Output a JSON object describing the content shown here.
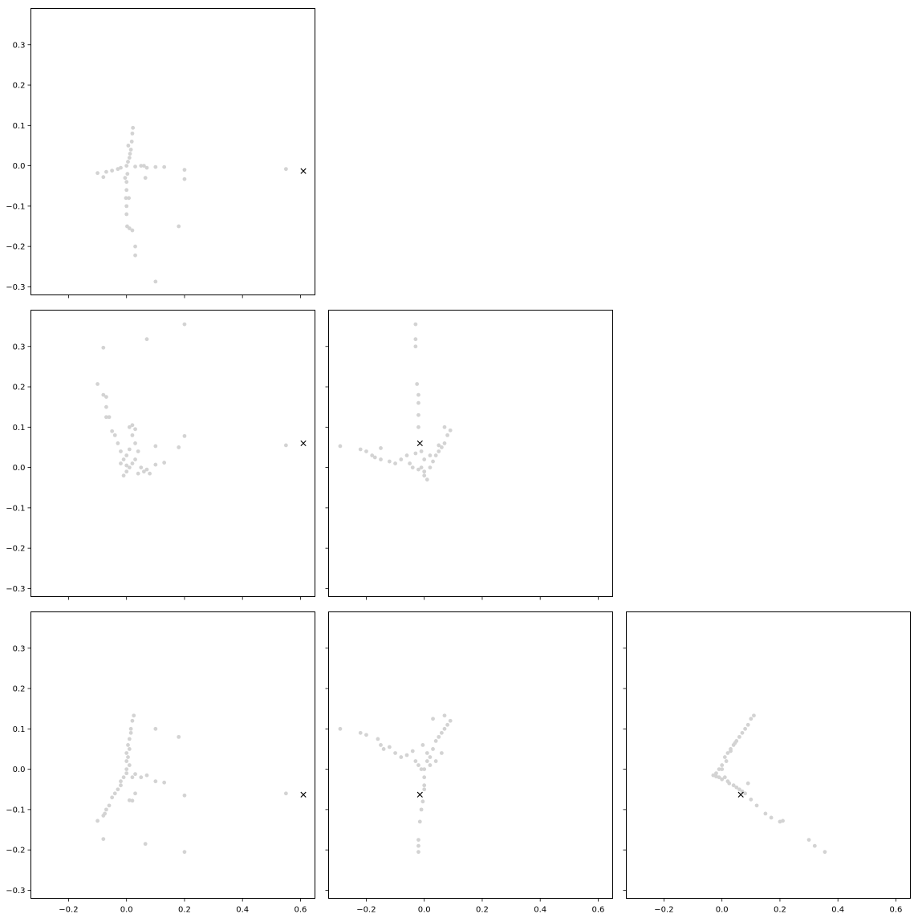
{
  "figure": {
    "layout": "3x3 lower-triangular pairwise scatter grid",
    "shared_x_range": [
      -0.33,
      0.65
    ],
    "shared_y_range": [
      -0.32,
      0.39
    ],
    "x_ticks": [
      -0.2,
      0.0,
      0.2,
      0.4,
      0.6
    ],
    "y_ticks": [
      -0.3,
      -0.2,
      -0.1,
      0.0,
      0.1,
      0.2,
      0.3
    ],
    "x_tick_labels": [
      "−0.2",
      "0.0",
      "0.2",
      "0.4",
      "0.6"
    ],
    "y_tick_labels": [
      "−0.3",
      "−0.2",
      "−0.1",
      "0.0",
      "0.1",
      "0.2",
      "0.3"
    ],
    "point_color": "#d3d3d3",
    "marker_color": "#000000"
  },
  "chart_data": [
    {
      "type": "scatter",
      "panel": "row1-col1",
      "grid": false,
      "xlim": [
        -0.33,
        0.65
      ],
      "ylim": [
        -0.32,
        0.39
      ],
      "marked_point": {
        "marker": "x",
        "x": 0.61,
        "y": -0.013
      },
      "points": [
        [
          0.0,
          0.0
        ],
        [
          0.01,
          0.02
        ],
        [
          0.015,
          0.04
        ],
        [
          0.018,
          0.06
        ],
        [
          0.02,
          0.08
        ],
        [
          0.022,
          0.094
        ],
        [
          0.012,
          0.03
        ],
        [
          0.005,
          0.01
        ],
        [
          0.003,
          -0.02
        ],
        [
          0.0,
          -0.04
        ],
        [
          0.0,
          -0.06
        ],
        [
          -0.002,
          -0.08
        ],
        [
          0.0,
          -0.1
        ],
        [
          0.0,
          -0.12
        ],
        [
          0.002,
          -0.15
        ],
        [
          0.01,
          -0.155
        ],
        [
          0.02,
          -0.16
        ],
        [
          0.03,
          -0.2
        ],
        [
          0.03,
          -0.222
        ],
        [
          0.1,
          -0.287
        ],
        [
          -0.1,
          -0.018
        ],
        [
          -0.08,
          -0.028
        ],
        [
          -0.07,
          -0.015
        ],
        [
          -0.05,
          -0.012
        ],
        [
          -0.03,
          -0.008
        ],
        [
          -0.02,
          -0.005
        ],
        [
          0.03,
          -0.002
        ],
        [
          0.05,
          0.0
        ],
        [
          0.06,
          0.0
        ],
        [
          0.07,
          -0.005
        ],
        [
          0.1,
          -0.003
        ],
        [
          0.13,
          -0.003
        ],
        [
          0.065,
          -0.03
        ],
        [
          0.18,
          -0.15
        ],
        [
          0.2,
          -0.01
        ],
        [
          0.2,
          -0.033
        ],
        [
          0.55,
          -0.008
        ],
        [
          0.008,
          -0.08
        ],
        [
          -0.005,
          -0.03
        ],
        [
          0.006,
          0.05
        ]
      ]
    },
    {
      "type": "scatter",
      "panel": "row2-col1",
      "grid": false,
      "xlim": [
        -0.33,
        0.65
      ],
      "ylim": [
        -0.32,
        0.39
      ],
      "marked_point": {
        "marker": "x",
        "x": 0.61,
        "y": 0.06
      },
      "points": [
        [
          -0.1,
          0.207
        ],
        [
          -0.08,
          0.297
        ],
        [
          -0.08,
          0.18
        ],
        [
          -0.07,
          0.175
        ],
        [
          -0.07,
          0.15
        ],
        [
          -0.06,
          0.125
        ],
        [
          -0.07,
          0.125
        ],
        [
          -0.05,
          0.09
        ],
        [
          -0.04,
          0.08
        ],
        [
          -0.03,
          0.06
        ],
        [
          -0.02,
          0.04
        ],
        [
          -0.01,
          0.02
        ],
        [
          0.0,
          0.005
        ],
        [
          -0.01,
          -0.02
        ],
        [
          0.0,
          -0.01
        ],
        [
          0.01,
          0.0
        ],
        [
          0.02,
          0.01
        ],
        [
          0.03,
          0.02
        ],
        [
          0.04,
          0.04
        ],
        [
          0.03,
          0.06
        ],
        [
          0.02,
          0.08
        ],
        [
          0.01,
          0.1
        ],
        [
          0.02,
          0.105
        ],
        [
          0.03,
          0.095
        ],
        [
          0.05,
          0.0
        ],
        [
          0.06,
          -0.01
        ],
        [
          0.07,
          -0.005
        ],
        [
          0.1,
          0.007
        ],
        [
          0.13,
          0.012
        ],
        [
          0.1,
          0.053
        ],
        [
          0.18,
          0.05
        ],
        [
          0.2,
          0.078
        ],
        [
          0.07,
          0.318
        ],
        [
          0.2,
          0.355
        ],
        [
          0.55,
          0.055
        ],
        [
          0.0,
          0.03
        ],
        [
          0.01,
          0.045
        ],
        [
          -0.02,
          0.01
        ],
        [
          0.04,
          -0.015
        ],
        [
          0.08,
          -0.015
        ]
      ]
    },
    {
      "type": "scatter",
      "panel": "row2-col2",
      "grid": false,
      "xlim": [
        -0.33,
        0.65
      ],
      "ylim": [
        -0.32,
        0.39
      ],
      "marked_point": {
        "marker": "x",
        "x": -0.015,
        "y": 0.06
      },
      "points": [
        [
          -0.29,
          0.053
        ],
        [
          -0.22,
          0.045
        ],
        [
          -0.2,
          0.04
        ],
        [
          -0.18,
          0.03
        ],
        [
          -0.17,
          0.025
        ],
        [
          -0.15,
          0.048
        ],
        [
          -0.15,
          0.02
        ],
        [
          -0.12,
          0.015
        ],
        [
          -0.1,
          0.01
        ],
        [
          -0.08,
          0.02
        ],
        [
          -0.06,
          0.03
        ],
        [
          -0.05,
          0.01
        ],
        [
          -0.04,
          0.0
        ],
        [
          -0.03,
          0.035
        ],
        [
          -0.02,
          -0.005
        ],
        [
          -0.01,
          0.0
        ],
        [
          0.0,
          -0.01
        ],
        [
          0.0,
          -0.02
        ],
        [
          0.01,
          -0.03
        ],
        [
          0.02,
          0.0
        ],
        [
          0.03,
          0.015
        ],
        [
          0.04,
          0.03
        ],
        [
          0.05,
          0.04
        ],
        [
          0.06,
          0.05
        ],
        [
          0.07,
          0.06
        ],
        [
          0.08,
          0.08
        ],
        [
          0.09,
          0.092
        ],
        [
          0.07,
          0.1
        ],
        [
          0.05,
          0.055
        ],
        [
          -0.02,
          0.1
        ],
        [
          -0.02,
          0.13
        ],
        [
          -0.02,
          0.16
        ],
        [
          -0.02,
          0.18
        ],
        [
          -0.025,
          0.207
        ],
        [
          -0.03,
          0.3
        ],
        [
          -0.03,
          0.318
        ],
        [
          -0.03,
          0.355
        ],
        [
          -0.01,
          0.04
        ],
        [
          0.0,
          0.02
        ],
        [
          0.02,
          0.03
        ]
      ]
    },
    {
      "type": "scatter",
      "panel": "row3-col1",
      "grid": false,
      "xlim": [
        -0.33,
        0.65
      ],
      "ylim": [
        -0.32,
        0.39
      ],
      "marked_point": {
        "marker": "x",
        "x": 0.61,
        "y": -0.063
      },
      "points": [
        [
          0.0,
          0.0
        ],
        [
          0.0,
          0.02
        ],
        [
          0.0,
          0.04
        ],
        [
          0.005,
          0.06
        ],
        [
          0.01,
          0.075
        ],
        [
          0.015,
          0.1
        ],
        [
          0.02,
          0.12
        ],
        [
          0.025,
          0.133
        ],
        [
          -0.01,
          -0.02
        ],
        [
          -0.02,
          -0.03
        ],
        [
          -0.03,
          -0.05
        ],
        [
          -0.04,
          -0.06
        ],
        [
          -0.05,
          -0.07
        ],
        [
          -0.06,
          -0.09
        ],
        [
          -0.07,
          -0.1
        ],
        [
          -0.075,
          -0.11
        ],
        [
          -0.08,
          -0.115
        ],
        [
          -0.1,
          -0.128
        ],
        [
          -0.08,
          -0.173
        ],
        [
          0.03,
          -0.06
        ],
        [
          0.01,
          -0.077
        ],
        [
          0.02,
          -0.078
        ],
        [
          0.05,
          -0.02
        ],
        [
          0.07,
          -0.015
        ],
        [
          0.1,
          -0.03
        ],
        [
          0.13,
          -0.033
        ],
        [
          0.1,
          0.1
        ],
        [
          0.18,
          0.08
        ],
        [
          0.2,
          -0.065
        ],
        [
          0.2,
          -0.205
        ],
        [
          0.065,
          -0.185
        ],
        [
          0.55,
          -0.06
        ],
        [
          0.01,
          0.01
        ],
        [
          0.01,
          0.05
        ],
        [
          0.0,
          -0.01
        ],
        [
          0.03,
          -0.012
        ],
        [
          -0.02,
          -0.04
        ],
        [
          0.005,
          0.03
        ],
        [
          0.02,
          -0.02
        ],
        [
          0.015,
          0.09
        ]
      ]
    },
    {
      "type": "scatter",
      "panel": "row3-col2",
      "grid": false,
      "xlim": [
        -0.33,
        0.65
      ],
      "ylim": [
        -0.32,
        0.39
      ],
      "marked_point": {
        "marker": "x",
        "x": -0.015,
        "y": -0.063
      },
      "points": [
        [
          -0.29,
          0.1
        ],
        [
          -0.22,
          0.09
        ],
        [
          -0.2,
          0.085
        ],
        [
          -0.16,
          0.075
        ],
        [
          -0.15,
          0.06
        ],
        [
          -0.14,
          0.05
        ],
        [
          -0.12,
          0.055
        ],
        [
          -0.1,
          0.04
        ],
        [
          -0.08,
          0.03
        ],
        [
          -0.06,
          0.035
        ],
        [
          -0.04,
          0.045
        ],
        [
          -0.03,
          0.02
        ],
        [
          -0.02,
          0.01
        ],
        [
          -0.01,
          0.0
        ],
        [
          0.0,
          0.0
        ],
        [
          0.0,
          -0.02
        ],
        [
          0.0,
          -0.04
        ],
        [
          0.0,
          -0.05
        ],
        [
          -0.005,
          -0.08
        ],
        [
          -0.01,
          -0.1
        ],
        [
          -0.015,
          -0.13
        ],
        [
          -0.02,
          -0.175
        ],
        [
          -0.02,
          -0.19
        ],
        [
          -0.02,
          -0.205
        ],
        [
          0.01,
          0.02
        ],
        [
          0.02,
          0.03
        ],
        [
          0.03,
          0.05
        ],
        [
          0.04,
          0.07
        ],
        [
          0.05,
          0.08
        ],
        [
          0.06,
          0.09
        ],
        [
          0.07,
          0.1
        ],
        [
          0.08,
          0.11
        ],
        [
          0.09,
          0.12
        ],
        [
          0.07,
          0.133
        ],
        [
          0.03,
          0.125
        ],
        [
          0.01,
          0.04
        ],
        [
          -0.005,
          0.06
        ],
        [
          0.02,
          0.01
        ],
        [
          0.04,
          0.02
        ],
        [
          0.06,
          0.04
        ]
      ]
    },
    {
      "type": "scatter",
      "panel": "row3-col3",
      "grid": false,
      "xlim": [
        -0.33,
        0.65
      ],
      "ylim": [
        -0.32,
        0.39
      ],
      "marked_point": {
        "marker": "x",
        "x": 0.065,
        "y": -0.063
      },
      "points": [
        [
          -0.03,
          -0.015
        ],
        [
          -0.02,
          -0.01
        ],
        [
          -0.01,
          0.0
        ],
        [
          0.0,
          0.01
        ],
        [
          0.01,
          0.03
        ],
        [
          0.02,
          0.04
        ],
        [
          0.03,
          0.05
        ],
        [
          0.04,
          0.06
        ],
        [
          0.05,
          0.07
        ],
        [
          0.06,
          0.08
        ],
        [
          0.07,
          0.09
        ],
        [
          0.08,
          0.1
        ],
        [
          0.09,
          0.11
        ],
        [
          0.1,
          0.125
        ],
        [
          0.11,
          0.133
        ],
        [
          -0.01,
          -0.02
        ],
        [
          0.0,
          -0.025
        ],
        [
          0.02,
          -0.03
        ],
        [
          0.04,
          -0.04
        ],
        [
          0.06,
          -0.05
        ],
        [
          0.08,
          -0.06
        ],
        [
          0.1,
          -0.075
        ],
        [
          0.12,
          -0.09
        ],
        [
          0.15,
          -0.11
        ],
        [
          0.17,
          -0.12
        ],
        [
          0.2,
          -0.13
        ],
        [
          0.21,
          -0.128
        ],
        [
          0.3,
          -0.175
        ],
        [
          0.32,
          -0.19
        ],
        [
          0.355,
          -0.205
        ],
        [
          0.0,
          0.0
        ],
        [
          0.015,
          0.02
        ],
        [
          0.045,
          0.065
        ],
        [
          0.025,
          -0.035
        ],
        [
          0.05,
          -0.045
        ],
        [
          0.09,
          -0.035
        ],
        [
          -0.02,
          -0.018
        ],
        [
          0.01,
          -0.02
        ],
        [
          0.07,
          -0.055
        ],
        [
          0.03,
          0.045
        ]
      ]
    }
  ]
}
